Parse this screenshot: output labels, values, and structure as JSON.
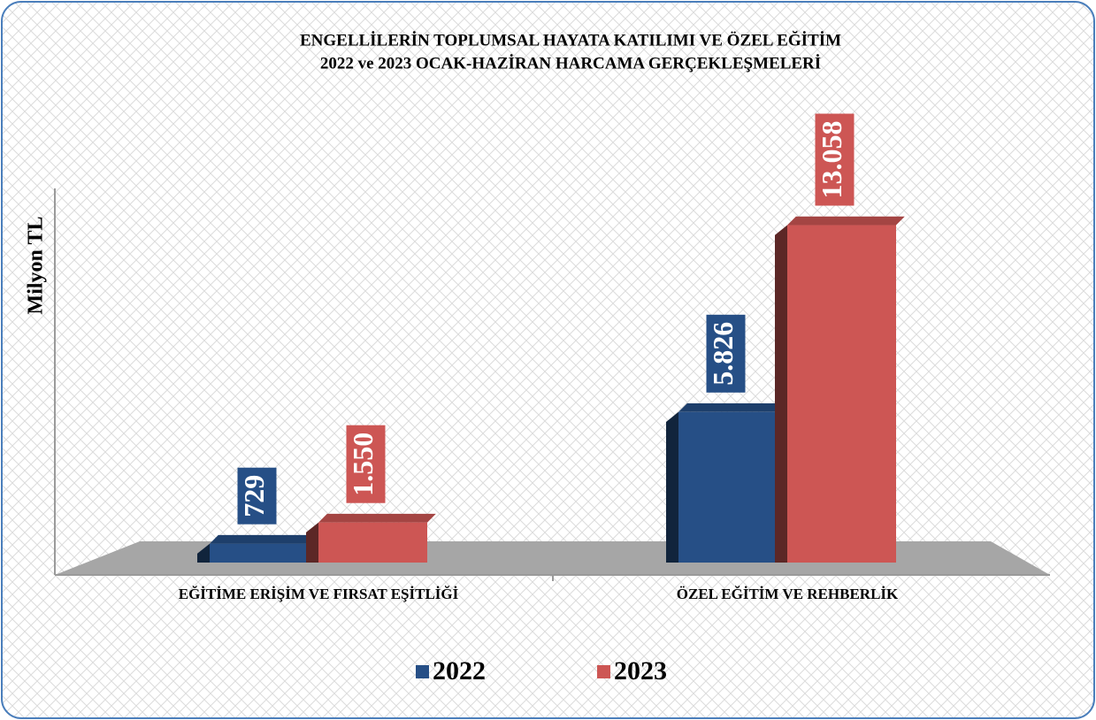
{
  "chart_data": {
    "type": "bar3d",
    "title": "ENGELLİLERİN TOPLUMSAL HAYATA KATILIMI VE ÖZEL EĞİTİM",
    "subtitle": "2022 ve 2023 OCAK-HAZİRAN HARCAMA GERÇEKLEŞMELERİ",
    "y_label": "Milyon TL",
    "categories": [
      "EĞİTİME ERİŞİM VE FIRSAT EŞİTLİĞİ",
      "ÖZEL EĞİTİM VE REHBERLİK"
    ],
    "series": [
      {
        "name": "2022",
        "color": "#264f86",
        "values": [
          729,
          5826
        ],
        "value_labels": [
          "729",
          "5.826"
        ]
      },
      {
        "name": "2023",
        "color": "#cd5654",
        "values": [
          1550,
          13058
        ],
        "value_labels": [
          "1.550",
          "13.058"
        ]
      }
    ],
    "ylim": [
      0,
      14000
    ],
    "legend": "bottom"
  }
}
